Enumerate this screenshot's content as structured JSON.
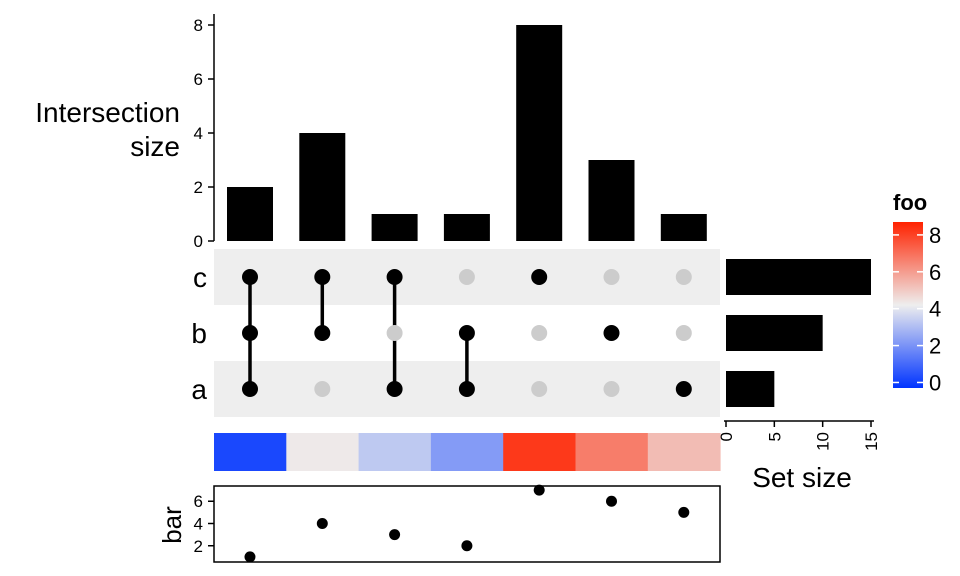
{
  "chart_data": {
    "type": "bar",
    "intersections": [
      {
        "sets": [
          "a",
          "b",
          "c"
        ],
        "size": 2,
        "foo": 0.2,
        "bar": 1
      },
      {
        "sets": [
          "b",
          "c"
        ],
        "size": 4,
        "foo": 4.3,
        "bar": 4
      },
      {
        "sets": [
          "a",
          "c"
        ],
        "size": 1,
        "foo": 3.3,
        "bar": 3
      },
      {
        "sets": [
          "a",
          "b"
        ],
        "size": 1,
        "foo": 2.2,
        "bar": 2
      },
      {
        "sets": [
          "c"
        ],
        "size": 8,
        "foo": 8.2,
        "bar": 7
      },
      {
        "sets": [
          "b"
        ],
        "size": 3,
        "foo": 6.7,
        "bar": 6
      },
      {
        "sets": [
          "a"
        ],
        "size": 1,
        "foo": 5.3,
        "bar": 5
      }
    ],
    "sets": [
      {
        "name": "c",
        "size": 15
      },
      {
        "name": "b",
        "size": 10
      },
      {
        "name": "a",
        "size": 5
      }
    ],
    "intersection_axis": {
      "label_lines": [
        "Intersection",
        "size"
      ],
      "ticks": [
        0,
        2,
        4,
        6,
        8
      ],
      "range": [
        0,
        8.4
      ]
    },
    "set_size_axis": {
      "label": "Set size",
      "ticks": [
        0,
        5,
        10,
        15
      ],
      "range": [
        0,
        15.4
      ]
    },
    "bar_axis": {
      "label": "bar",
      "ticks": [
        2,
        4,
        6
      ],
      "range": [
        0.9,
        7.1
      ]
    },
    "legend": {
      "title": "foo",
      "ticks": [
        0,
        2,
        4,
        6,
        8
      ],
      "range": [
        -0.3,
        8.7
      ],
      "placement": "right",
      "colors": {
        "low": "#0033ff",
        "mid": "#eeeeee",
        "high": "#ff2200"
      }
    },
    "colors": {
      "bar": "#000000",
      "dot_active": "#000000",
      "dot_inactive": "#cccccc",
      "matrix_band": "#eeeeee"
    }
  }
}
